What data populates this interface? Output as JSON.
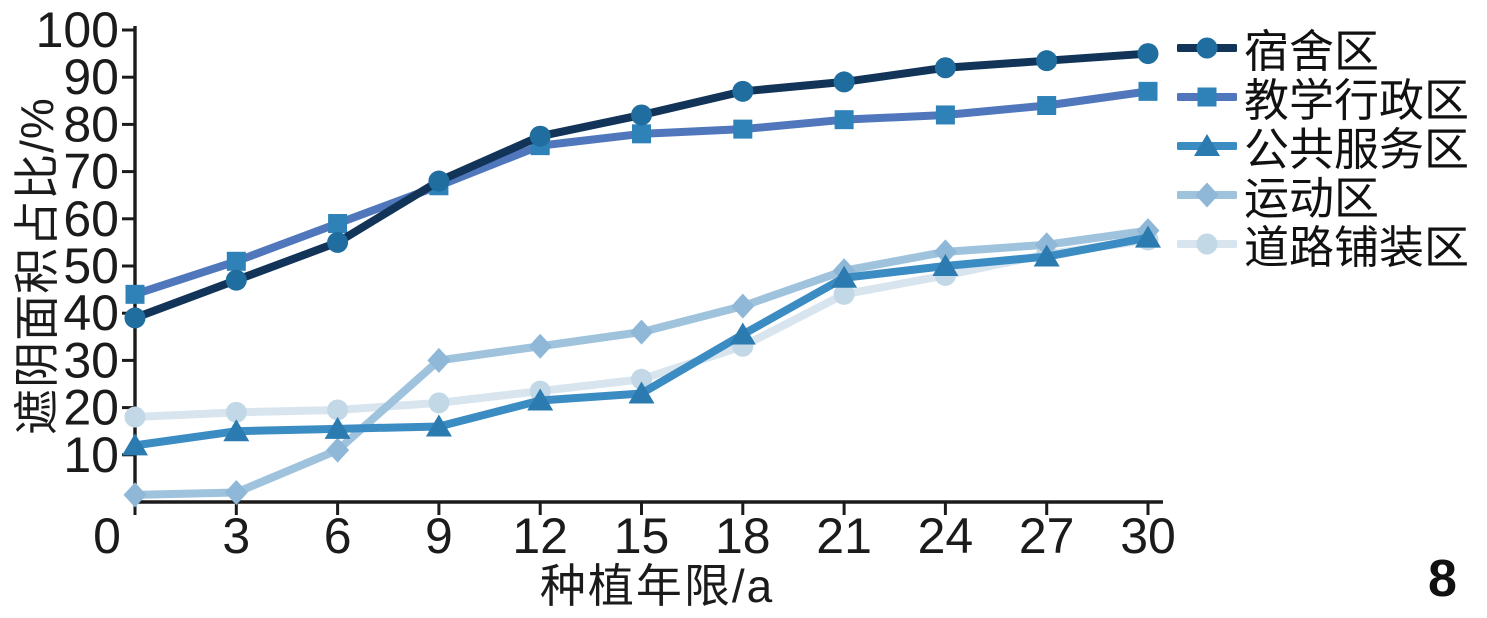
{
  "figure": {
    "page_number": "8"
  },
  "chart_data": {
    "type": "line",
    "title": "",
    "xlabel": "种植年限/a",
    "ylabel": "遮阴面积占比/%",
    "xlim": [
      0,
      30
    ],
    "ylim": [
      0,
      100
    ],
    "grid": false,
    "legend_position": "right",
    "x": [
      0,
      3,
      6,
      9,
      12,
      15,
      18,
      21,
      24,
      27,
      30
    ],
    "x_ticks": [
      0,
      3,
      6,
      9,
      12,
      15,
      18,
      21,
      24,
      27,
      30
    ],
    "y_ticks": [
      10,
      20,
      30,
      40,
      50,
      60,
      70,
      80,
      90,
      100
    ],
    "series": [
      {
        "id": "dormitory-area",
        "label": "宿舍区",
        "marker": "circle",
        "line_color": "#123459",
        "marker_color": "#1f6e9f",
        "values": [
          39,
          47,
          55,
          68,
          77.5,
          82,
          87,
          89,
          92,
          93.5,
          95
        ]
      },
      {
        "id": "teaching-admin-area",
        "label": "教学行政区",
        "marker": "square",
        "line_color": "#5077bb",
        "marker_color": "#2e82b8",
        "values": [
          44,
          51,
          59,
          67,
          75.5,
          78,
          79,
          81,
          82,
          84,
          87
        ]
      },
      {
        "id": "public-service-area",
        "label": "公共服务区",
        "marker": "triangle",
        "line_color": "#3b8cc2",
        "marker_color": "#2b7ab0",
        "values": [
          12,
          15,
          15.5,
          16,
          21.5,
          23,
          35.5,
          47.5,
          50,
          52,
          56
        ]
      },
      {
        "id": "sports-area",
        "label": "运动区",
        "marker": "diamond",
        "line_color": "#9fc2dd",
        "marker_color": "#8fb7d7",
        "values": [
          1.5,
          2,
          11,
          30,
          33,
          36,
          41.5,
          49,
          53,
          54.5,
          57.5
        ]
      },
      {
        "id": "road-paving-area",
        "label": "道路铺装区",
        "marker": "circle",
        "line_color": "#d9e5ee",
        "marker_color": "#c3d8e7",
        "values": [
          18,
          19,
          19.5,
          21,
          23.5,
          26,
          33,
          44,
          48,
          52.5,
          55.5
        ]
      }
    ]
  }
}
